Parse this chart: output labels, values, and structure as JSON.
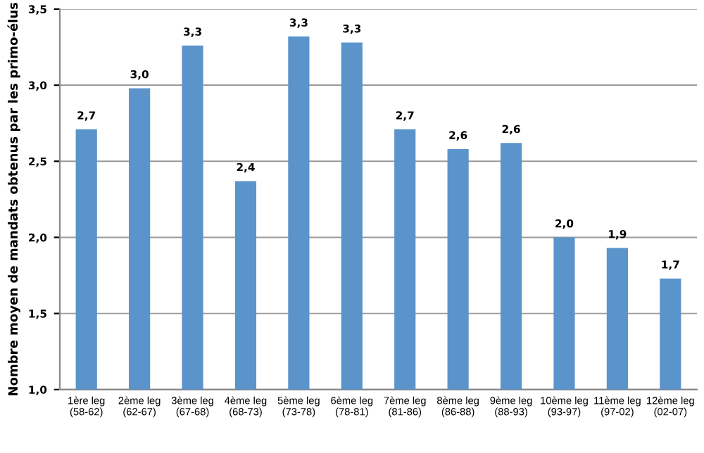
{
  "chart_data": {
    "type": "bar",
    "ylabel": "Nombre moyen de mandats obtenus par les primo-élus",
    "categories": [
      "1ère leg\n(58-62)",
      "2ème leg\n(62-67)",
      "3ème leg\n(67-68)",
      "4ème leg\n(68-73)",
      "5ème leg\n(73-78)",
      "6ème leg\n(78-81)",
      "7ème leg\n(81-86)",
      "8ème leg\n(86-88)",
      "9ème leg\n(88-93)",
      "10ème leg\n(93-97)",
      "11ème leg\n(97-02)",
      "12ème leg\n(02-07)"
    ],
    "values": [
      2.71,
      2.98,
      3.26,
      2.37,
      3.32,
      3.28,
      2.71,
      2.58,
      2.62,
      2.0,
      1.93,
      1.73
    ],
    "value_labels": [
      "2,7",
      "3,0",
      "3,3",
      "2,4",
      "3,3",
      "3,3",
      "2,7",
      "2,6",
      "2,6",
      "2,0",
      "1,9",
      "1,7"
    ],
    "color": "#5b93cb",
    "ylim": [
      1.0,
      3.5
    ],
    "yticks": [
      {
        "value": 1.0,
        "label": "1,0"
      },
      {
        "value": 1.5,
        "label": "1,5"
      },
      {
        "value": 2.0,
        "label": "2,0"
      },
      {
        "value": 2.5,
        "label": "2,5"
      },
      {
        "value": 3.0,
        "label": "3,0"
      },
      {
        "value": 3.5,
        "label": "3,5"
      }
    ],
    "grid": "y"
  }
}
